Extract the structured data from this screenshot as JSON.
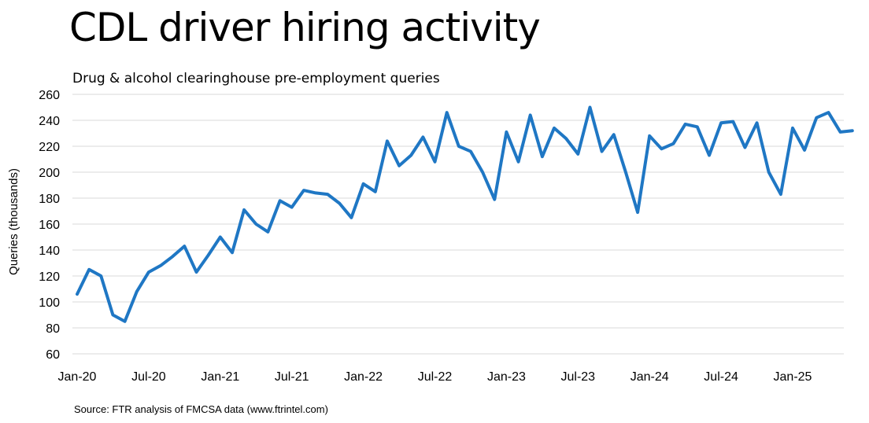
{
  "title": "CDL driver hiring activity",
  "subtitle": "Drug & alcohol clearinghouse pre-employment queries",
  "source": "Source: FTR analysis of FMCSA data (www.ftrintel.com)",
  "chart_data": {
    "type": "line",
    "ylabel": "Queries (thousands)",
    "xlabel": "",
    "ylim": [
      60,
      260
    ],
    "yticks": [
      60,
      80,
      100,
      120,
      140,
      160,
      180,
      200,
      220,
      240,
      260
    ],
    "xtick_labels": [
      "Jan-20",
      "Jul-20",
      "Jan-21",
      "Jul-21",
      "Jan-22",
      "Jul-22",
      "Jan-23",
      "Jul-23",
      "Jan-24",
      "Jul-24",
      "Jan-25"
    ],
    "xtick_months": [
      "2020-01",
      "2020-07",
      "2021-01",
      "2021-07",
      "2022-01",
      "2022-07",
      "2023-01",
      "2023-07",
      "2024-01",
      "2024-07",
      "2025-01"
    ],
    "grid": true,
    "line_color": "#1f77c4",
    "series": [
      {
        "x": [
          "2020-01",
          "2020-02",
          "2020-03",
          "2020-04",
          "2020-05",
          "2020-06",
          "2020-07",
          "2020-08",
          "2020-09",
          "2020-10",
          "2020-11",
          "2020-12",
          "2021-01",
          "2021-02",
          "2021-03",
          "2021-04",
          "2021-05",
          "2021-06",
          "2021-07",
          "2021-08",
          "2021-09",
          "2021-10",
          "2021-11",
          "2021-12",
          "2022-01",
          "2022-02",
          "2022-03",
          "2022-04",
          "2022-05",
          "2022-06",
          "2022-07",
          "2022-08",
          "2022-09",
          "2022-10",
          "2022-11",
          "2022-12",
          "2023-01",
          "2023-02",
          "2023-03",
          "2023-04",
          "2023-05",
          "2023-06",
          "2023-07",
          "2023-08",
          "2023-09",
          "2023-10",
          "2023-11",
          "2023-12",
          "2024-01",
          "2024-02",
          "2024-03",
          "2024-04",
          "2024-05",
          "2024-06",
          "2024-07",
          "2024-08",
          "2024-09",
          "2024-10",
          "2024-11",
          "2024-12",
          "2025-01",
          "2025-02",
          "2025-03",
          "2025-04",
          "2025-05",
          "2025-06"
        ],
        "values": [
          106,
          125,
          120,
          90,
          85,
          108,
          123,
          128,
          135,
          143,
          123,
          136,
          150,
          138,
          171,
          160,
          154,
          178,
          173,
          186,
          184,
          183,
          176,
          165,
          191,
          185,
          224,
          205,
          213,
          227,
          208,
          246,
          220,
          216,
          200,
          179,
          231,
          208,
          244,
          212,
          234,
          226,
          214,
          250,
          216,
          229,
          200,
          169,
          228,
          218,
          222,
          237,
          235,
          213,
          238,
          239,
          219,
          238,
          200,
          183,
          234,
          217,
          242,
          246,
          231,
          232
        ]
      }
    ]
  }
}
